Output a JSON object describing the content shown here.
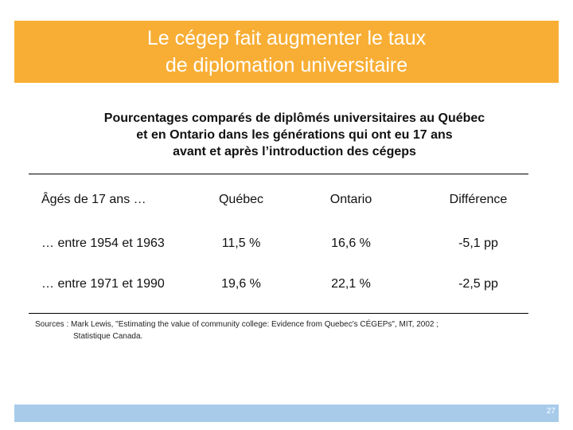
{
  "header": {
    "title": [
      "Le cégep fait augmenter le taux",
      "de diplomation universitaire"
    ]
  },
  "subtitle": [
    "Pourcentages comparés de diplômés universitaires au Québec",
    "et en Ontario dans les générations qui ont eu 17 ans",
    "avant et après l’introduction des cégeps"
  ],
  "table": {
    "columns": [
      "Âgés de 17 ans …",
      "Québec",
      "Ontario",
      "Différence"
    ],
    "rows": [
      [
        "… entre 1954 et 1963",
        "11,5 %",
        "16,6 %",
        "-5,1 pp"
      ],
      [
        "… entre 1971 et 1990",
        "19,6 %",
        "22,1 %",
        "-2,5 pp"
      ]
    ]
  },
  "sources": [
    "Sources : Mark Lewis, \"Estimating the value of community college: Evidence from Quebec's CÉGEPs\", MIT, 2002 ;",
    "Statistique Canada."
  ],
  "footer": {
    "page_number": "27"
  }
}
